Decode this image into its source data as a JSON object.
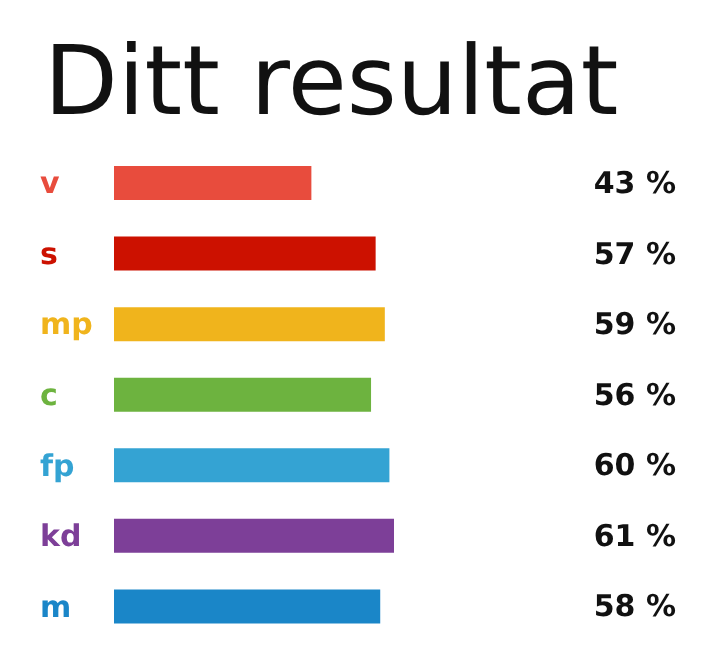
{
  "chart_data": {
    "type": "bar",
    "orientation": "horizontal",
    "title": "Ditt resultat",
    "categories": [
      "v",
      "s",
      "mp",
      "c",
      "fp",
      "kd",
      "m"
    ],
    "values": [
      43,
      57,
      59,
      56,
      60,
      61,
      58
    ],
    "colors": [
      "#e84c3d",
      "#cc1100",
      "#f0b41c",
      "#6db33f",
      "#34a3d3",
      "#7d3f98",
      "#1a86c8"
    ],
    "value_labels": [
      "43 %",
      "57 %",
      "59 %",
      "56 %",
      "60 %",
      "61 %",
      "58 %"
    ]
  }
}
